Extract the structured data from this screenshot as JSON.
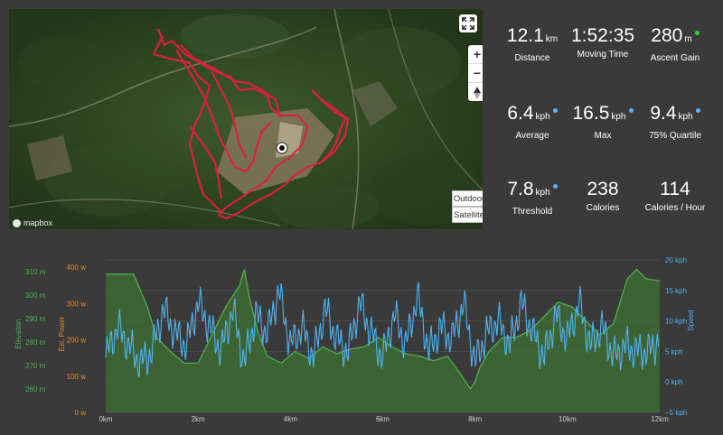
{
  "map": {
    "fullscreen_icon": "fullscreen-icon",
    "zoom_in": "+",
    "zoom_out": "−",
    "compass_icon": "compass-icon",
    "style_outdoor": "Outdoor",
    "style_satellite": "Satellite",
    "logo_text": "mapbox",
    "route_color": "#e0203c"
  },
  "stats": [
    {
      "value": "12.1",
      "unit": "km",
      "label": "Distance",
      "marker": ""
    },
    {
      "value": "1:52:35",
      "unit": "",
      "label": "Moving Time",
      "marker": ""
    },
    {
      "value": "280",
      "unit": "m",
      "label": "Ascent Gain",
      "marker": "#2ecc40"
    },
    {
      "value": "6.4",
      "unit": "kph",
      "label": "Average",
      "marker": "#5ab4ff"
    },
    {
      "value": "16.5",
      "unit": "kph",
      "label": "Max",
      "marker": "#5ab4ff"
    },
    {
      "value": "9.4",
      "unit": "kph",
      "label": "75% Quartile",
      "marker": "#5ab4ff"
    },
    {
      "value": "7.8",
      "unit": "kph",
      "label": "Threshold",
      "marker": "#5ab4ff"
    },
    {
      "value": "238",
      "unit": "",
      "label": "Calories",
      "marker": ""
    },
    {
      "value": "114",
      "unit": "",
      "label": "Calories / Hour",
      "marker": ""
    }
  ],
  "chart_data": {
    "type": "area",
    "x_label_values": [
      0,
      2,
      4,
      6,
      8,
      10,
      12
    ],
    "x_tick_labels": [
      "0km",
      "2km",
      "4km",
      "6km",
      "8km",
      "10km",
      "12km"
    ],
    "elevation": {
      "axis_label": "Elevation",
      "ylim": [
        250,
        315
      ],
      "tick_values": [
        260,
        270,
        280,
        290,
        300,
        310
      ],
      "tick_labels": [
        "260 m",
        "270 m",
        "280 m",
        "290 m",
        "300 m",
        "310 m"
      ],
      "color": "#4caf50",
      "x": [
        0,
        0.3,
        0.6,
        0.9,
        1.1,
        1.4,
        1.7,
        2.0,
        2.3,
        2.6,
        2.9,
        3.0,
        3.1,
        3.3,
        3.5,
        3.8,
        4.1,
        4.4,
        4.7,
        5.0,
        5.3,
        5.6,
        5.9,
        6.2,
        6.5,
        6.8,
        7.1,
        7.4,
        7.7,
        7.9,
        8.0,
        8.1,
        8.3,
        8.6,
        8.9,
        9.2,
        9.5,
        9.8,
        10.1,
        10.4,
        10.7,
        11.0,
        11.3,
        11.5,
        11.7,
        12.0
      ],
      "y": [
        309,
        309,
        309,
        295,
        282,
        276,
        271,
        271,
        283,
        295,
        304,
        311,
        300,
        284,
        274,
        271,
        276,
        273,
        278,
        275,
        277,
        278,
        282,
        278,
        275,
        274,
        272,
        274,
        266,
        260,
        263,
        269,
        276,
        282,
        282,
        285,
        291,
        297,
        295,
        289,
        283,
        288,
        307,
        311,
        307,
        306
      ]
    },
    "power": {
      "axis_label": "Est. Power",
      "ylim": [
        0,
        420
      ],
      "tick_values": [
        0,
        100,
        200,
        300,
        400
      ],
      "tick_labels": [
        "0 w",
        "100 w",
        "200 w",
        "300 w",
        "400 w"
      ],
      "color": "#e08a2e"
    },
    "speed": {
      "axis_label": "Speed",
      "ylim": [
        -5,
        20
      ],
      "tick_values": [
        -5,
        0,
        5,
        10,
        15,
        20
      ],
      "tick_labels": [
        "−5 kph",
        "0 kph",
        "5 kph",
        "10 kph",
        "15 kph",
        "20 kph"
      ],
      "color": "#4fb3f0",
      "x": [
        0,
        0.25,
        0.5,
        0.75,
        1.0,
        1.25,
        1.5,
        1.75,
        2.0,
        2.25,
        2.5,
        2.75,
        3.0,
        3.25,
        3.5,
        3.75,
        4.0,
        4.25,
        4.5,
        4.75,
        5.0,
        5.25,
        5.5,
        5.75,
        6.0,
        6.25,
        6.5,
        6.75,
        7.0,
        7.25,
        7.5,
        7.75,
        8.0,
        8.25,
        8.5,
        8.75,
        9.0,
        9.25,
        9.5,
        9.75,
        10.0,
        10.25,
        10.5,
        10.75,
        11.0,
        11.25,
        11.5,
        11.75,
        12.0
      ],
      "y": [
        4,
        9,
        6,
        3,
        5,
        12,
        8,
        6,
        13,
        9,
        5,
        12,
        3,
        11,
        8,
        15,
        6,
        9,
        4,
        12,
        7,
        5,
        13,
        8,
        4,
        11,
        6,
        14,
        5,
        9,
        7,
        13,
        3,
        8,
        10,
        6,
        13,
        8,
        4,
        11,
        7,
        13,
        6,
        9,
        4,
        6,
        5,
        5,
        7
      ]
    }
  }
}
